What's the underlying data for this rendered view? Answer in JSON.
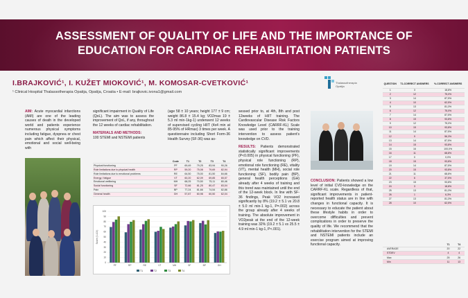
{
  "poster": {
    "title_line1": "ASSESSMENT OF QUALITY OF LIFE AND THE IMPORTANCE OF",
    "title_line2": "EDUCATION FOR CARDIAC REHABILITATION PATIENTS",
    "authors": "I.BRAJKOVIĆ¹, I. KUŽET MIOKOVIĆ¹, M. KOMOSAR-CVETKOVIĆ¹",
    "affiliation": "¹ Clinical Hospital Thalassotherapia Opatija, Opatija, Croatia • E-mail: brajkovic.ivona1@gmail.com",
    "logo_text": "Thalassotherapia Opatija",
    "accent": "#8a1a45"
  },
  "text": {
    "aim_head": "AIM:",
    "aim_body": "Acute myocardial infarctions (AMI) are one of the leading causes of death in the developed world and patients experience numerous physical symptoms including fatigue, dyspnea or chest pain which affect their physical, emotional and social well-being with",
    "col2_top": "significant impairment in Quality of Life (QoL). The aim was to assess the improvement of QoL, if any, throughout the 12 weeks of cardiac rehabilitation.",
    "methods_head": "MATERIALS AND METHODS:",
    "methods_body": "100 STEMI and NSTEMI patients",
    "col3_top": "(age 58 ± 10 years; height 177 ± 9 cm; weight 86.8 ± 15.4 kg; VO2max 19 ± 5.3 ml min-1kg-1) underwent 12 weeks of supervised cycling HIIT (4x4 min at 85-95% of HRmax) 3 times per week. A questionnaire including Short Form-36 Health Survey (SF-36) was as-",
    "col4_top": "sessed prior to, at 4th, 8th and post 12weeks of HIIT training. The Cardiovascular Disease Risk Factors Knowledge Level (CARRF-KL) Scale was used prior to the training intervention to assess patient's knowledge on CVD.",
    "results_head": "RESULTS:",
    "results_body": "Patients demonstrated statistically significant improvements (P<0.005) in physical functioning (PF), physical role functioning (RP), emotional role functioning (RE), vitality (VT), mental health (MH), social role functioning (SF), bodily pain (BP), general health perceptions (GH) already after 4 weeks of training and this trend was maintained until the end of the 12-week block. In line with SF-36 findings, Peak VO2 increased significantly by 8% (19.2 ± 5.1 vs 20.8 ± 5.0 ml min-1 kg-1, P=.002) across the group already after 4 weeks of training. The absolute improvement in VO2peak at the end of the 12-week training was 32% (19.2 ± 5.1 vs 25.5 ± 4.9 ml min-1 kg-1, P<.001).",
    "concl_head": "CONCLUSION:",
    "concl_body": "Patients showed a low level of initial CVD-knowledge on the CARRF-KL scale. Regardless of that, significant improvements in patient-reported health status are in line with changes in functional capacity. It is necessary to educate the patient about these lifestyle habits in order to overcome difficulties and prevent complications in order to preserve the quality of life. We recommend that the rehabilitation intervention for the STEMI and NSTEMI patients include an exercise program aimed at improving functional capacity."
  },
  "sf_table": {
    "headers": [
      "",
      "Code",
      "T1",
      "T2",
      "T3",
      "T4"
    ],
    "rows": [
      [
        "Physical functioning",
        "PF",
        "69,49",
        "79,25",
        "83,94",
        "90,26"
      ],
      [
        "Role limitations due to physical health",
        "RP",
        "59,20",
        "75,08",
        "79,69",
        "82,94"
      ],
      [
        "Role limitations due to emotional problems",
        "RE",
        "64,50",
        "75,00",
        "81,50",
        "84,66"
      ],
      [
        "Energy / fatigue",
        "VT",
        "60,20",
        "62,09",
        "69,85",
        "65,57"
      ],
      [
        "Emotional wellbeing",
        "MH",
        "68,25",
        "70,50",
        "75,11",
        "80,46"
      ],
      [
        "Social functioning",
        "SF",
        "72,66",
        "81,25",
        "80,47",
        "83,04"
      ],
      [
        "Pain",
        "BP",
        "77,24",
        "81,66",
        "74,54",
        "82,86"
      ],
      [
        "General health",
        "GH",
        "57,87",
        "60,98",
        "60,50",
        "62,04"
      ]
    ]
  },
  "chart_data": {
    "type": "bar",
    "categories": [
      "PF",
      "RP",
      "RE",
      "VT",
      "MH",
      "SF",
      "BP",
      "GH"
    ],
    "ylabel": "Score (0-100)",
    "ylim": [
      0,
      100
    ],
    "yticks": [
      0,
      10,
      20,
      30,
      40,
      50,
      60,
      70,
      80,
      90,
      100
    ],
    "series": [
      {
        "name": "T1",
        "color": "#2f5f73",
        "values": [
          69.49,
          59.2,
          64.5,
          60.2,
          68.25,
          72.66,
          77.24,
          57.87
        ]
      },
      {
        "name": "T2",
        "color": "#6f3b8c",
        "values": [
          79.25,
          75.08,
          75.0,
          62.09,
          70.5,
          81.25,
          81.66,
          60.98
        ]
      },
      {
        "name": "T3",
        "color": "#2e8b3e",
        "values": [
          83.94,
          79.69,
          81.5,
          69.85,
          75.11,
          80.47,
          74.54,
          60.5
        ]
      },
      {
        "name": "T4",
        "color": "#7a8a2a",
        "values": [
          90.26,
          82.94,
          84.66,
          65.57,
          80.46,
          83.04,
          82.86,
          62.04
        ]
      }
    ]
  },
  "right_table": {
    "headers": [
      "QUESTION",
      "T1-CORRECT ANSWERS",
      "%-CORRECT ANSWERS"
    ],
    "rows": [
      [
        "1",
        "3",
        "18,8%"
      ],
      [
        "2",
        "12",
        "75,0%"
      ],
      [
        "3",
        "14",
        "87,5%"
      ],
      [
        "4",
        "10",
        "62,5%"
      ],
      [
        "5",
        "13",
        "81,3%"
      ],
      [
        "6",
        "12",
        "75,0%"
      ],
      [
        "7",
        "14",
        "87,5%"
      ],
      [
        "8",
        "15",
        "93,8%"
      ],
      [
        "9",
        "12",
        "75,0%"
      ],
      [
        "10",
        "15",
        "93,8%"
      ],
      [
        "11",
        "14",
        "87,5%"
      ],
      [
        "12",
        "9",
        "56,3%"
      ],
      [
        "13",
        "14",
        "87,5%"
      ],
      [
        "14",
        "15",
        "93,8%"
      ],
      [
        "15",
        "16",
        "100,0%"
      ],
      [
        "16",
        "11",
        "68,8%"
      ],
      [
        "17",
        "0",
        "0,0%"
      ],
      [
        "18",
        "15",
        "93,8%"
      ],
      [
        "19",
        "14",
        "87,5%"
      ],
      [
        "20",
        "15",
        "93,8%"
      ],
      [
        "21",
        "11",
        "68,8%"
      ],
      [
        "22",
        "6",
        "37,5%"
      ],
      [
        "23",
        "15",
        "93,8%"
      ],
      [
        "24",
        "3",
        "18,8%"
      ],
      [
        "25",
        "13",
        "81,3%"
      ],
      [
        "26",
        "1",
        "6,3%"
      ],
      [
        "27",
        "13",
        "81,3%"
      ],
      [
        "28",
        "10",
        "62,5%"
      ]
    ]
  },
  "right_table2": {
    "headers": [
      "",
      "T1",
      "T4"
    ],
    "rows": [
      [
        "AVERAGE",
        "20",
        "22"
      ],
      [
        "STDEV",
        "4",
        "4"
      ],
      [
        "Max",
        "25",
        "26"
      ],
      [
        "Min",
        "11",
        "13"
      ]
    ]
  }
}
